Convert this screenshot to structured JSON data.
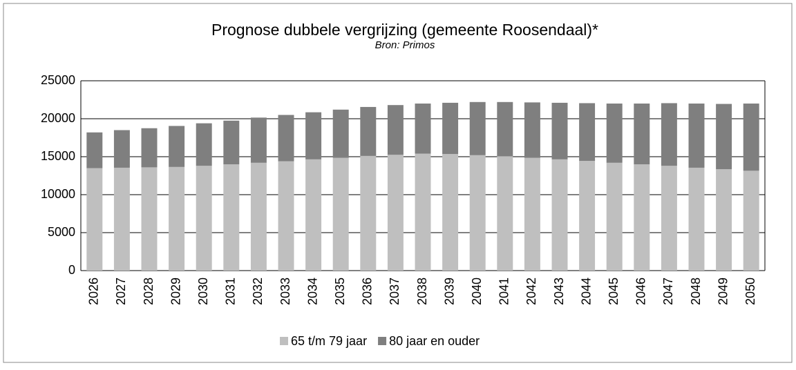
{
  "chart_data": {
    "type": "stacked_bar",
    "title": "Prognose dubbele vergrijzing (gemeente Roosendaal)*",
    "subtitle": "Bron: Primos",
    "categories": [
      "2026",
      "2027",
      "2028",
      "2029",
      "2030",
      "2031",
      "2032",
      "2033",
      "2034",
      "2035",
      "2036",
      "2037",
      "2038",
      "2039",
      "2040",
      "2041",
      "2042",
      "2043",
      "2044",
      "2045",
      "2046",
      "2047",
      "2048",
      "2049",
      "2050"
    ],
    "series": [
      {
        "name": "65 t/m 79 jaar",
        "color": "#bfbfbf",
        "values": [
          13500,
          13550,
          13600,
          13650,
          13800,
          14000,
          14200,
          14400,
          14650,
          14850,
          15100,
          15250,
          15400,
          15350,
          15200,
          15050,
          14850,
          14650,
          14450,
          14200,
          14000,
          13800,
          13550,
          13350,
          13150
        ]
      },
      {
        "name": "80 jaar en ouder",
        "color": "#7f7f7f",
        "values": [
          4700,
          4950,
          5150,
          5400,
          5600,
          5750,
          5950,
          6100,
          6200,
          6350,
          6450,
          6550,
          6600,
          6750,
          7000,
          7150,
          7300,
          7450,
          7600,
          7800,
          8000,
          8250,
          8450,
          8600,
          8850
        ]
      }
    ],
    "ylim": [
      0,
      25000
    ],
    "yticks": [
      0,
      5000,
      10000,
      15000,
      20000,
      25000
    ],
    "grid": true,
    "legend": "bottom"
  }
}
